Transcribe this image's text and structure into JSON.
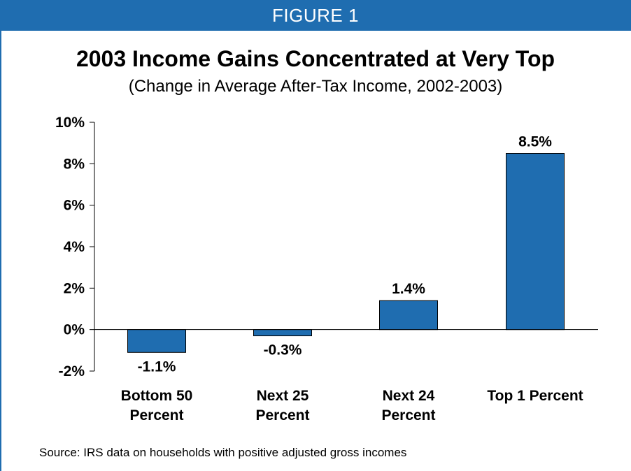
{
  "banner": {
    "label": "FIGURE 1"
  },
  "colors": {
    "banner": "#1f6db0",
    "bar": "#1f6db0",
    "bar_outline": "#000000"
  },
  "chart_data": {
    "type": "bar",
    "title": "2003 Income Gains Concentrated at Very Top",
    "subtitle": "(Change in Average After-Tax Income, 2002-2003)",
    "categories": [
      [
        "Bottom 50",
        "Percent"
      ],
      [
        "Next 25",
        "Percent"
      ],
      [
        "Next 24",
        "Percent"
      ],
      [
        "Top 1 Percent"
      ]
    ],
    "values": [
      -1.1,
      -0.3,
      1.4,
      8.5
    ],
    "value_labels": [
      "-1.1%",
      "-0.3%",
      "1.4%",
      "8.5%"
    ],
    "ylim": [
      -2,
      10
    ],
    "yticks": [
      -2,
      0,
      2,
      4,
      6,
      8,
      10
    ],
    "ytick_labels": [
      "-2%",
      "0%",
      "2%",
      "4%",
      "6%",
      "8%",
      "10%"
    ],
    "xlabel": "",
    "ylabel": "",
    "grid": false,
    "legend": "none"
  },
  "source": "Source: IRS data on households with positive adjusted gross incomes"
}
